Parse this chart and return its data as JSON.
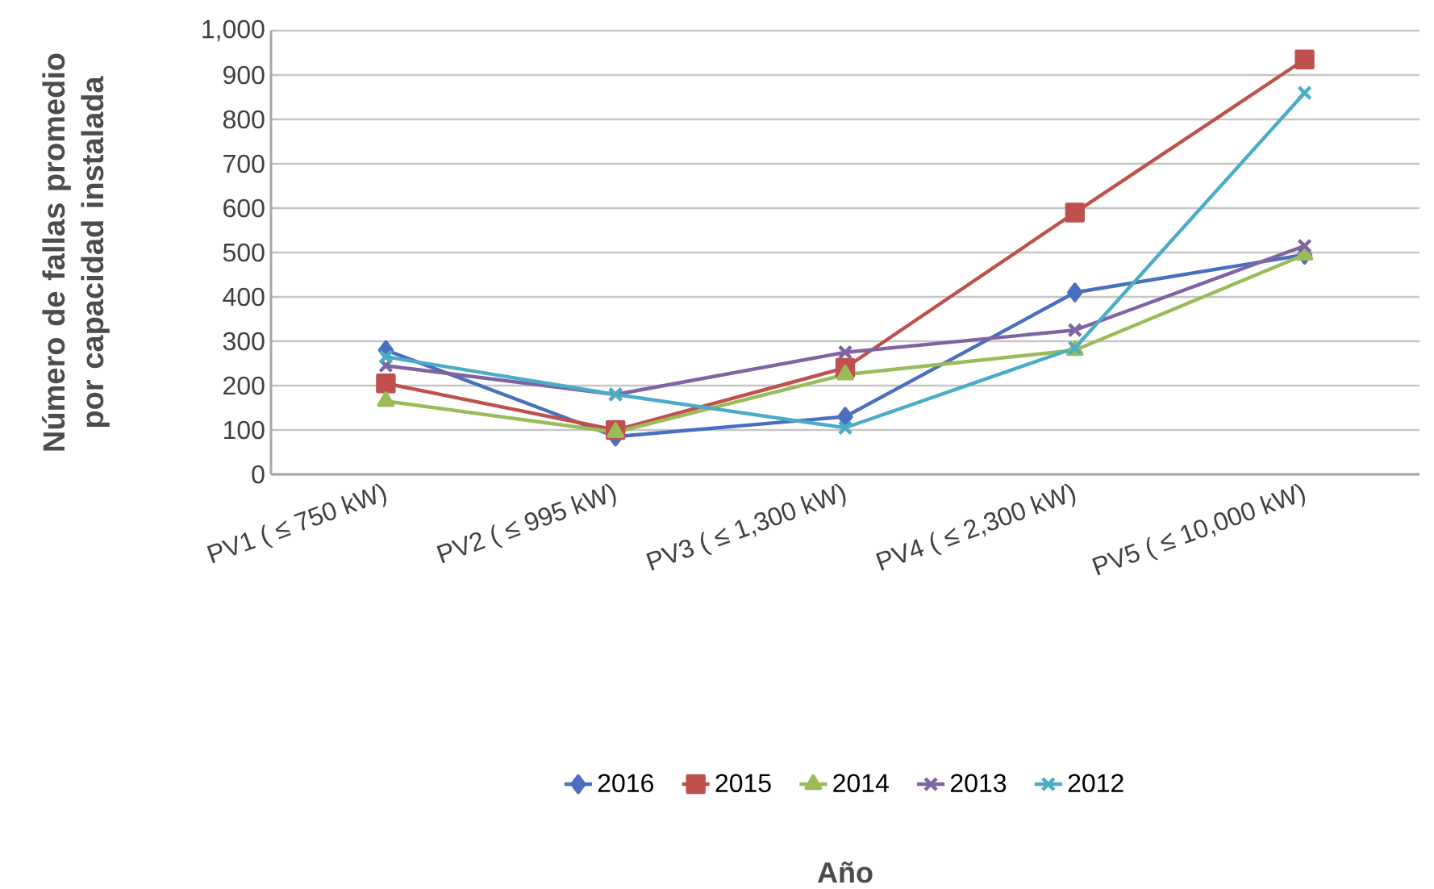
{
  "chart_data": {
    "type": "line",
    "annotations": [
      "Año"
    ],
    "ylabel": "Número de fallas promedio por capacidad instalada",
    "categories": [
      "PV1 ( ≤ 750 kW)",
      "PV2 ( ≤ 995 kW)",
      "PV3 ( ≤ 1,300 kW)",
      "PV4 ( ≤ 2,300 kW)",
      "PV5 ( ≤ 10,000 kW)"
    ],
    "series": [
      {
        "name": "2016",
        "color": "#4a6fbf",
        "marker": "diamond",
        "values": [
          280,
          85,
          130,
          410,
          495
        ]
      },
      {
        "name": "2015",
        "color": "#c0504d",
        "marker": "square",
        "values": [
          205,
          100,
          240,
          590,
          935
        ]
      },
      {
        "name": "2014",
        "color": "#9bbb59",
        "marker": "triangle",
        "values": [
          165,
          95,
          225,
          280,
          495
        ]
      },
      {
        "name": "2013",
        "color": "#8064a2",
        "marker": "cross",
        "values": [
          245,
          180,
          275,
          325,
          515
        ]
      },
      {
        "name": "2012",
        "color": "#4bacc6",
        "marker": "cross",
        "values": [
          265,
          180,
          105,
          285,
          860
        ]
      }
    ],
    "ylim": [
      0,
      1000
    ],
    "yticks": [
      0,
      100,
      200,
      300,
      400,
      500,
      600,
      700,
      800,
      900,
      {
        "value": 1000,
        "label": "1,000"
      }
    ],
    "grid": "y",
    "legend": "bottom"
  }
}
